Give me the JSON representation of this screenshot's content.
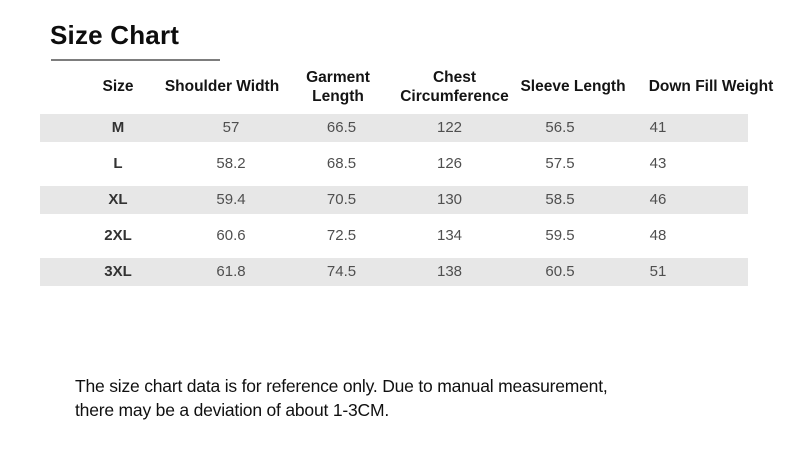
{
  "page": {
    "title": "Size Chart"
  },
  "chart_data": {
    "type": "table",
    "title": "Size Chart",
    "columns": [
      "Size",
      "Shoulder Width",
      "Garment Length",
      "Chest Circumference",
      "Sleeve Length",
      "Down Fill Weight"
    ],
    "rows": [
      [
        "M",
        "57",
        "66.5",
        "122",
        "56.5",
        "41"
      ],
      [
        "L",
        "58.2",
        "68.5",
        "126",
        "57.5",
        "43"
      ],
      [
        "XL",
        "59.4",
        "70.5",
        "130",
        "58.5",
        "46"
      ],
      [
        "2XL",
        "60.6",
        "72.5",
        "134",
        "59.5",
        "48"
      ],
      [
        "3XL",
        "61.8",
        "74.5",
        "138",
        "60.5",
        "51"
      ]
    ],
    "stripe_pattern": "odd rows shaded (M, XL, 3XL)"
  },
  "footnote": {
    "line1": "The size chart data is for reference only. Due to manual measurement,",
    "line2": "there may be a deviation of about 1-3CM."
  },
  "colors": {
    "background": "#ffffff",
    "row_stripe": "#e7e7e7",
    "title_text": "#0d0d0d",
    "title_underline": "#7d7d7d",
    "header_text": "#141414",
    "size_label_text": "#333333",
    "value_text": "#4f4f4f",
    "footnote_text": "#101010"
  }
}
